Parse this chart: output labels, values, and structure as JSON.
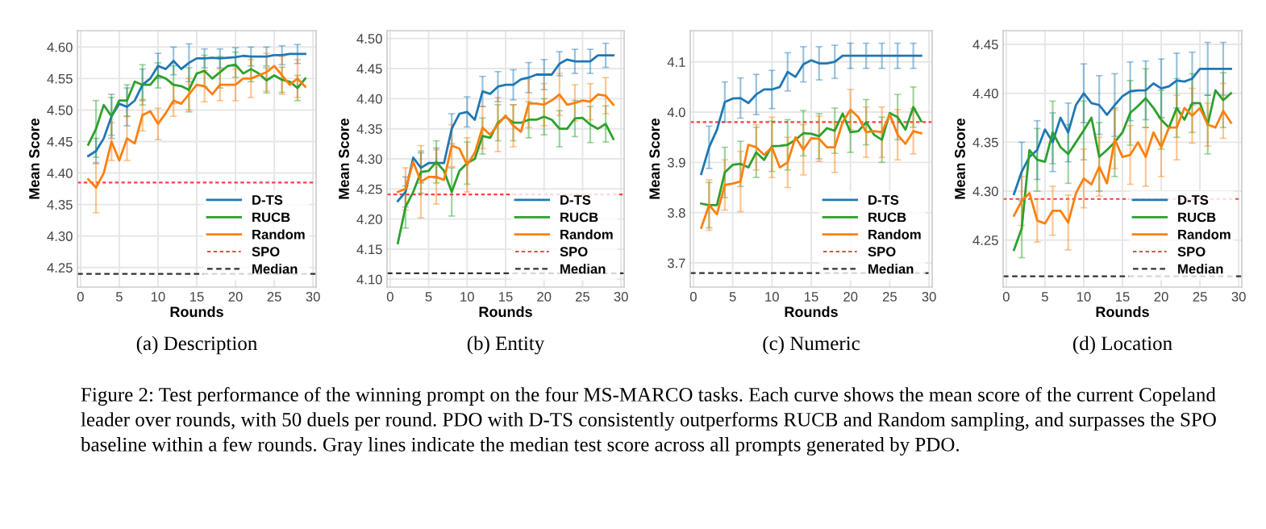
{
  "chart_data": [
    {
      "type": "line",
      "title": "(a) Description",
      "xlabel": "Rounds",
      "ylabel": "Mean Score",
      "grid": true,
      "legend": "bottom right",
      "marker": "none",
      "line_style": "solid",
      "annotations": [
        "Figure 2: Test performance of the winning prompt on the four MS-MARCO tasks. Each curve shows the mean score of the current Copeland leader over rounds, with 50 duels per round. PDO with D-TS consistently outperforms RUCB and Random sampling, and surpasses the SPO baseline within a few rounds. Gray lines indicate the median test score across all prompts generated by PDO."
      ],
      "x": [
        1,
        2,
        3,
        4,
        5,
        6,
        7,
        8,
        9,
        10,
        11,
        12,
        13,
        14,
        15,
        16,
        17,
        18,
        19,
        20,
        21,
        22,
        23,
        24,
        25,
        26,
        27,
        28,
        29
      ],
      "xlim": [
        -0.4,
        30.4
      ],
      "xticks": [
        0,
        5,
        10,
        15,
        20,
        25,
        30
      ],
      "ylim": [
        4.219,
        4.626
      ],
      "yticks": [
        {
          "value": 4.25,
          "label": "4.25"
        },
        {
          "value": 4.3,
          "label": "4.30"
        },
        {
          "value": 4.35,
          "label": "4.35"
        },
        {
          "value": 4.4,
          "label": "4.40"
        },
        {
          "value": 4.45,
          "label": "4.45"
        },
        {
          "value": 4.5,
          "label": "4.50"
        },
        {
          "value": 4.55,
          "label": "4.55"
        },
        {
          "value": 4.6,
          "label": "4.60"
        }
      ],
      "series": [
        {
          "name": "D-TS",
          "color": "#1f77b4",
          "values": [
            4.427,
            4.435,
            4.455,
            4.49,
            4.51,
            4.505,
            4.515,
            4.54,
            4.55,
            4.57,
            4.565,
            4.578,
            4.565,
            4.575,
            4.582,
            4.582,
            4.583,
            4.582,
            4.583,
            4.584,
            4.586,
            4.585,
            4.585,
            4.585,
            4.587,
            4.587,
            4.589,
            4.589,
            4.589
          ],
          "errors": [
            null,
            0.02,
            null,
            0.035,
            null,
            0.03,
            null,
            0.025,
            null,
            0.02,
            null,
            0.022,
            null,
            0.03,
            null,
            0.015,
            null,
            0.015,
            null,
            0.015,
            null,
            0.015,
            null,
            0.015,
            null,
            0.015,
            null,
            0.015,
            null
          ]
        },
        {
          "name": "RUCB",
          "color": "#2ca02c",
          "values": [
            4.445,
            4.47,
            4.508,
            4.49,
            4.515,
            4.515,
            4.545,
            4.54,
            4.54,
            4.555,
            4.55,
            4.54,
            4.538,
            4.532,
            4.558,
            4.562,
            4.55,
            4.56,
            4.57,
            4.572,
            4.558,
            4.565,
            4.558,
            4.547,
            4.555,
            4.548,
            4.545,
            4.535,
            4.55
          ],
          "errors": [
            null,
            0.045,
            null,
            0.03,
            null,
            0.025,
            null,
            0.032,
            null,
            0.02,
            null,
            0.03,
            null,
            0.035,
            null,
            0.025,
            null,
            0.025,
            null,
            0.02,
            null,
            0.02,
            null,
            0.02,
            null,
            0.02,
            null,
            0.02,
            null
          ]
        },
        {
          "name": "Random",
          "color": "#ff7f0e",
          "values": [
            4.39,
            4.377,
            4.4,
            4.45,
            4.42,
            4.455,
            4.447,
            4.492,
            4.498,
            4.478,
            4.495,
            4.515,
            4.51,
            4.525,
            4.54,
            4.538,
            4.525,
            4.54,
            4.54,
            4.54,
            4.55,
            4.55,
            4.555,
            4.56,
            4.57,
            4.555,
            4.54,
            4.55,
            4.537
          ],
          "errors": [
            null,
            0.04,
            null,
            0.03,
            null,
            0.035,
            null,
            0.025,
            null,
            0.025,
            null,
            0.025,
            null,
            0.025,
            null,
            0.025,
            null,
            0.025,
            null,
            0.025,
            null,
            0.03,
            null,
            0.03,
            null,
            0.03,
            null,
            0.03,
            null
          ]
        }
      ],
      "ref_lines": [
        {
          "axis": "y",
          "value": 4.385,
          "label": "SPO",
          "color": "#ff4040",
          "line_style": "dotted"
        },
        {
          "axis": "y",
          "value": 4.24,
          "label": "Median",
          "color": "#333333",
          "line_style": "dashed"
        }
      ]
    },
    {
      "type": "line",
      "title": "(b) Entity",
      "xlabel": "Rounds",
      "ylabel": "Mean Score",
      "grid": true,
      "legend": "bottom right",
      "marker": "none",
      "line_style": "solid",
      "x": [
        1,
        2,
        3,
        4,
        5,
        6,
        7,
        8,
        9,
        10,
        11,
        12,
        13,
        14,
        15,
        16,
        17,
        18,
        19,
        20,
        21,
        22,
        23,
        24,
        25,
        26,
        27,
        28,
        29
      ],
      "xlim": [
        -0.4,
        30.4
      ],
      "xticks": [
        0,
        5,
        10,
        15,
        20,
        25,
        30
      ],
      "ylim": [
        4.087,
        4.513
      ],
      "yticks": [
        {
          "value": 4.1,
          "label": "4.10"
        },
        {
          "value": 4.15,
          "label": "4.15"
        },
        {
          "value": 4.2,
          "label": "4.20"
        },
        {
          "value": 4.25,
          "label": "4.25"
        },
        {
          "value": 4.3,
          "label": "4.30"
        },
        {
          "value": 4.35,
          "label": "4.35"
        },
        {
          "value": 4.4,
          "label": "4.40"
        },
        {
          "value": 4.45,
          "label": "4.45"
        },
        {
          "value": 4.5,
          "label": "4.50"
        }
      ],
      "series": [
        {
          "name": "D-TS",
          "color": "#1f77b4",
          "values": [
            4.23,
            4.245,
            4.302,
            4.285,
            4.293,
            4.293,
            4.293,
            4.35,
            4.375,
            4.378,
            4.365,
            4.412,
            4.408,
            4.42,
            4.423,
            4.423,
            4.432,
            4.435,
            4.44,
            4.44,
            4.44,
            4.458,
            4.465,
            4.462,
            4.462,
            4.462,
            4.472,
            4.472,
            4.472
          ],
          "errors": [
            null,
            0.025,
            null,
            0.025,
            null,
            0.025,
            null,
            0.025,
            null,
            0.025,
            null,
            0.025,
            null,
            0.025,
            null,
            0.025,
            null,
            0.025,
            null,
            0.025,
            null,
            0.02,
            null,
            0.02,
            null,
            0.02,
            null,
            0.02,
            null
          ]
        },
        {
          "name": "RUCB",
          "color": "#2ca02c",
          "values": [
            4.16,
            4.22,
            4.245,
            4.278,
            4.28,
            4.295,
            4.28,
            4.245,
            4.28,
            4.293,
            4.3,
            4.338,
            4.335,
            4.36,
            4.37,
            4.36,
            4.36,
            4.365,
            4.365,
            4.37,
            4.365,
            4.35,
            4.35,
            4.367,
            4.368,
            4.357,
            4.35,
            4.358,
            4.333
          ],
          "errors": [
            null,
            0.035,
            null,
            0.035,
            null,
            0.035,
            null,
            0.04,
            null,
            0.035,
            null,
            0.03,
            null,
            0.03,
            null,
            0.03,
            null,
            0.03,
            null,
            0.03,
            null,
            0.03,
            null,
            0.03,
            null,
            0.03,
            null,
            0.03,
            null
          ]
        },
        {
          "name": "Random",
          "color": "#ff7f0e",
          "values": [
            4.245,
            4.25,
            4.295,
            4.262,
            4.27,
            4.27,
            4.265,
            4.322,
            4.317,
            4.29,
            4.31,
            4.352,
            4.34,
            4.357,
            4.372,
            4.355,
            4.345,
            4.392,
            4.392,
            4.39,
            4.397,
            4.407,
            4.39,
            4.393,
            4.397,
            4.395,
            4.407,
            4.405,
            4.39
          ],
          "errors": [
            null,
            0.035,
            null,
            0.06,
            null,
            0.045,
            null,
            0.035,
            null,
            0.045,
            null,
            0.035,
            null,
            0.045,
            null,
            0.035,
            null,
            0.04,
            null,
            0.035,
            null,
            0.035,
            null,
            0.03,
            null,
            0.03,
            null,
            0.03,
            null
          ]
        }
      ],
      "ref_lines": [
        {
          "axis": "y",
          "value": 4.241,
          "label": "SPO",
          "color": "#ff4040",
          "line_style": "dotted"
        },
        {
          "axis": "y",
          "value": 4.11,
          "label": "Median",
          "color": "#333333",
          "line_style": "dashed"
        }
      ]
    },
    {
      "type": "line",
      "title": "(c) Numeric",
      "xlabel": "Rounds",
      "ylabel": "Mean Score",
      "grid": true,
      "legend": "bottom right",
      "marker": "none",
      "line_style": "solid",
      "x": [
        1,
        2,
        3,
        4,
        5,
        6,
        7,
        8,
        9,
        10,
        11,
        12,
        13,
        14,
        15,
        16,
        17,
        18,
        19,
        20,
        21,
        22,
        23,
        24,
        25,
        26,
        27,
        28,
        29
      ],
      "xlim": [
        -0.4,
        30.4
      ],
      "xticks": [
        0,
        5,
        10,
        15,
        20,
        25,
        30
      ],
      "ylim": [
        3.652,
        4.162
      ],
      "yticks": [
        3.7,
        3.8,
        3.9,
        {
          "value": 4.0,
          "label": "4.0"
        },
        4.1
      ],
      "series": [
        {
          "name": "D-TS",
          "color": "#1f77b4",
          "values": [
            3.877,
            3.93,
            3.965,
            4.02,
            4.027,
            4.028,
            4.018,
            4.035,
            4.045,
            4.045,
            4.05,
            4.08,
            4.07,
            4.095,
            4.103,
            4.097,
            4.097,
            4.1,
            4.112,
            4.112,
            4.112,
            4.112,
            4.112,
            4.112,
            4.112,
            4.112,
            4.112,
            4.112,
            4.112
          ],
          "errors": [
            null,
            0.042,
            null,
            0.04,
            null,
            0.04,
            null,
            0.04,
            null,
            0.038,
            null,
            0.038,
            null,
            0.035,
            null,
            0.033,
            null,
            0.033,
            null,
            0.025,
            null,
            0.025,
            null,
            0.025,
            null,
            0.025,
            null,
            0.025,
            null
          ]
        },
        {
          "name": "RUCB",
          "color": "#2ca02c",
          "values": [
            3.818,
            3.815,
            3.815,
            3.88,
            3.895,
            3.897,
            3.89,
            3.92,
            3.905,
            3.932,
            3.933,
            3.935,
            3.945,
            3.958,
            3.957,
            3.952,
            3.968,
            3.963,
            3.997,
            3.96,
            3.962,
            3.98,
            3.955,
            3.945,
            3.998,
            3.99,
            3.965,
            4.01,
            3.982
          ],
          "errors": [
            null,
            0.045,
            null,
            0.05,
            null,
            0.045,
            null,
            0.05,
            null,
            0.05,
            null,
            0.05,
            null,
            0.045,
            null,
            0.045,
            null,
            0.045,
            null,
            0.04,
            null,
            0.045,
            null,
            0.045,
            null,
            0.045,
            null,
            0.04,
            null
          ]
        },
        {
          "name": "Random",
          "color": "#ff7f0e",
          "values": [
            3.77,
            3.815,
            3.797,
            3.855,
            3.858,
            3.862,
            3.935,
            3.93,
            3.915,
            3.93,
            3.89,
            3.9,
            3.95,
            3.925,
            3.948,
            3.947,
            3.93,
            3.93,
            3.98,
            4.005,
            3.99,
            3.96,
            3.962,
            3.96,
            3.995,
            3.955,
            3.937,
            3.962,
            3.958
          ],
          "errors": [
            null,
            0.05,
            null,
            0.05,
            null,
            0.06,
            null,
            0.045,
            null,
            0.06,
            null,
            0.05,
            null,
            0.05,
            null,
            0.045,
            null,
            0.05,
            null,
            0.04,
            null,
            0.05,
            null,
            0.05,
            null,
            0.05,
            null,
            0.045,
            null
          ]
        }
      ],
      "ref_lines": [
        {
          "axis": "y",
          "value": 3.98,
          "label": "SPO",
          "color": "#ff4040",
          "line_style": "dotted"
        },
        {
          "axis": "y",
          "value": 3.68,
          "label": "Median",
          "color": "#333333",
          "line_style": "dashed"
        }
      ]
    },
    {
      "type": "line",
      "title": "(d) Location",
      "xlabel": "Rounds",
      "ylabel": "Mean Score",
      "grid": true,
      "legend": "bottom right",
      "marker": "none",
      "line_style": "solid",
      "x": [
        1,
        2,
        3,
        4,
        5,
        6,
        7,
        8,
        9,
        10,
        11,
        12,
        13,
        14,
        15,
        16,
        17,
        18,
        19,
        20,
        21,
        22,
        23,
        24,
        25,
        26,
        27,
        28,
        29
      ],
      "xlim": [
        -0.4,
        30.4
      ],
      "xticks": [
        0,
        5,
        10,
        15,
        20,
        25,
        30
      ],
      "ylim": [
        4.202,
        4.464
      ],
      "yticks": [
        {
          "value": 4.25,
          "label": "4.25"
        },
        {
          "value": 4.3,
          "label": "4.30"
        },
        {
          "value": 4.35,
          "label": "4.35"
        },
        {
          "value": 4.4,
          "label": "4.40"
        },
        {
          "value": 4.45,
          "label": "4.45"
        }
      ],
      "series": [
        {
          "name": "D-TS",
          "color": "#1f77b4",
          "values": [
            4.297,
            4.32,
            4.335,
            4.342,
            4.363,
            4.35,
            4.375,
            4.36,
            4.388,
            4.4,
            4.39,
            4.388,
            4.378,
            4.388,
            4.397,
            4.402,
            4.403,
            4.403,
            4.41,
            4.405,
            4.407,
            4.413,
            4.412,
            4.415,
            4.425,
            4.425,
            4.425,
            4.425,
            4.425
          ],
          "errors": [
            null,
            0.03,
            null,
            0.03,
            null,
            0.03,
            null,
            0.03,
            null,
            0.03,
            null,
            0.03,
            null,
            0.032,
            null,
            0.03,
            null,
            0.03,
            null,
            0.03,
            null,
            0.028,
            null,
            0.027,
            null,
            0.027,
            null,
            0.027,
            null
          ]
        },
        {
          "name": "RUCB",
          "color": "#2ca02c",
          "values": [
            4.24,
            4.262,
            4.342,
            4.332,
            4.33,
            4.36,
            4.345,
            4.338,
            4.35,
            4.362,
            4.375,
            4.335,
            4.342,
            4.35,
            4.36,
            4.38,
            4.387,
            4.395,
            4.385,
            4.373,
            4.365,
            4.385,
            4.373,
            4.39,
            4.39,
            4.368,
            4.403,
            4.393,
            4.4
          ],
          "errors": [
            null,
            0.03,
            null,
            0.032,
            null,
            0.032,
            null,
            0.03,
            null,
            0.03,
            null,
            0.035,
            null,
            0.035,
            null,
            0.033,
            null,
            0.03,
            null,
            0.03,
            null,
            0.03,
            null,
            0.03,
            null,
            0.03,
            null,
            0.028,
            null
          ]
        },
        {
          "name": "Random",
          "color": "#ff7f0e",
          "values": [
            4.275,
            4.29,
            4.298,
            4.27,
            4.267,
            4.28,
            4.28,
            4.268,
            4.298,
            4.313,
            4.307,
            4.325,
            4.308,
            4.353,
            4.335,
            4.337,
            4.35,
            4.335,
            4.36,
            4.345,
            4.365,
            4.365,
            4.385,
            4.377,
            4.385,
            4.368,
            4.365,
            4.382,
            4.37
          ],
          "errors": [
            null,
            0.025,
            null,
            0.022,
            null,
            0.025,
            null,
            0.028,
            null,
            0.03,
            null,
            0.03,
            null,
            0.03,
            null,
            0.03,
            null,
            0.03,
            null,
            0.03,
            null,
            0.033,
            null,
            0.028,
            null,
            0.022,
            null,
            0.028,
            null
          ]
        }
      ],
      "ref_lines": [
        {
          "axis": "y",
          "value": 4.292,
          "label": "SPO",
          "color": "#ff4040",
          "line_style": "dotted"
        },
        {
          "axis": "y",
          "value": 4.213,
          "label": "Median",
          "color": "#333333",
          "line_style": "dashed"
        }
      ]
    }
  ]
}
